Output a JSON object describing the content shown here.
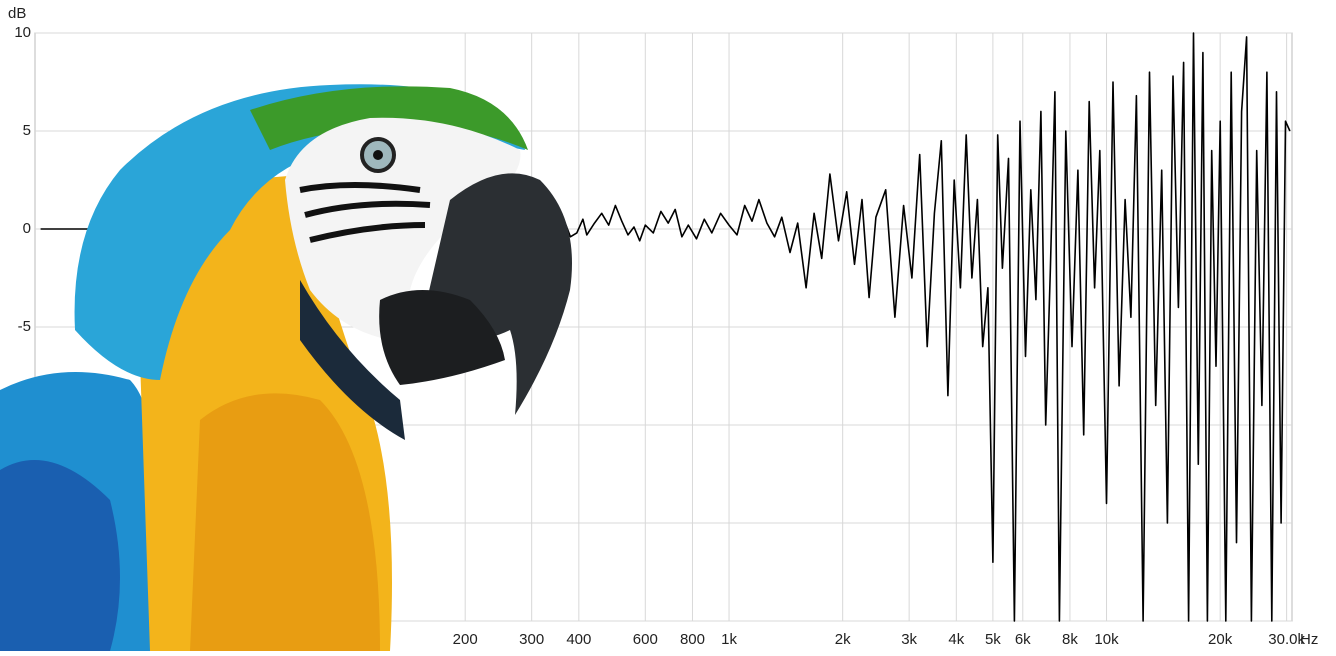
{
  "chart_data": {
    "type": "line",
    "y_label": "dB",
    "x_label": "Hz",
    "xscale": "log",
    "grid": true,
    "color": "#000000",
    "xlim": [
      14.5,
      31000
    ],
    "ylim": [
      -20,
      10
    ],
    "yticks": [
      -20,
      -15,
      -10,
      -5,
      0,
      5,
      10
    ],
    "xticks": [
      200,
      300,
      400,
      600,
      800,
      {
        "value": 1000,
        "label": "1k"
      },
      {
        "value": 2000,
        "label": "2k"
      },
      {
        "value": 3000,
        "label": "3k"
      },
      {
        "value": 4000,
        "label": "4k"
      },
      {
        "value": 5000,
        "label": "5k"
      },
      {
        "value": 6000,
        "label": "6k"
      },
      {
        "value": 8000,
        "label": "8k"
      },
      {
        "value": 10000,
        "label": "10k"
      },
      {
        "value": 20000,
        "label": "20k"
      },
      {
        "value": 30000,
        "label": "30.0k"
      }
    ],
    "x": [
      15,
      18,
      21,
      25,
      30,
      40,
      60,
      100,
      150,
      250,
      370,
      380,
      395,
      410,
      420,
      440,
      460,
      480,
      500,
      520,
      540,
      560,
      580,
      600,
      630,
      660,
      690,
      720,
      750,
      780,
      820,
      860,
      900,
      950,
      1000,
      1050,
      1100,
      1150,
      1200,
      1260,
      1320,
      1380,
      1450,
      1520,
      1600,
      1680,
      1760,
      1850,
      1950,
      2050,
      2150,
      2250,
      2350,
      2450,
      2600,
      2750,
      2900,
      3050,
      3200,
      3350,
      3500,
      3650,
      3800,
      3950,
      4100,
      4250,
      4400,
      4550,
      4700,
      4850,
      5000,
      5150,
      5300,
      5500,
      5700,
      5900,
      6100,
      6300,
      6500,
      6700,
      6900,
      7100,
      7300,
      7500,
      7800,
      8100,
      8400,
      8700,
      9000,
      9300,
      9600,
      10000,
      10400,
      10800,
      11200,
      11600,
      12000,
      12500,
      13000,
      13500,
      14000,
      14500,
      15000,
      15500,
      16000,
      16500,
      17000,
      17500,
      18000,
      18500,
      19000,
      19500,
      20000,
      20700,
      21400,
      22100,
      22800,
      23500,
      24200,
      25000,
      25800,
      26600,
      27400,
      28200,
      29000,
      29800,
      30600
    ],
    "values": [
      0,
      0,
      0,
      0,
      0,
      0,
      0,
      0,
      0,
      0,
      0.2,
      -0.4,
      -0.2,
      0.5,
      -0.3,
      0.3,
      0.8,
      0.2,
      1.2,
      0.4,
      -0.3,
      0.1,
      -0.6,
      0.2,
      -0.2,
      0.9,
      0.3,
      1,
      -0.4,
      0.2,
      -0.5,
      0.5,
      -0.2,
      0.8,
      0.2,
      -0.3,
      1.2,
      0.4,
      1.5,
      0.3,
      -0.4,
      0.6,
      -1.2,
      0.3,
      -3,
      0.8,
      -1.5,
      2.8,
      -0.6,
      1.9,
      -1.8,
      1.5,
      -3.5,
      0.6,
      2,
      -4.5,
      1.2,
      -2.5,
      3.8,
      -6,
      0.8,
      4.5,
      -8.5,
      2.5,
      -3,
      4.8,
      -2.5,
      1.5,
      -6,
      -3,
      -17,
      4.8,
      -2,
      3.6,
      -20,
      5.5,
      -6.5,
      2,
      -3.6,
      6,
      -10,
      -2,
      7,
      -20,
      5,
      -6,
      3,
      -10.5,
      6.5,
      -3,
      4,
      -14,
      7.5,
      -8,
      1.5,
      -4.5,
      6.8,
      -20,
      8,
      -9,
      3,
      -15,
      7.8,
      -4,
      8.5,
      -20,
      10,
      -12,
      9,
      -20,
      4,
      -7,
      5.5,
      -20,
      8,
      -16,
      6,
      9.8,
      -20,
      4,
      -9,
      8,
      -20,
      7,
      -15,
      5.5,
      5
    ]
  }
}
